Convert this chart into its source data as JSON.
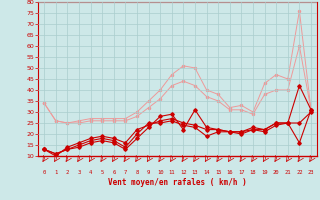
{
  "x": [
    0,
    1,
    2,
    3,
    4,
    5,
    6,
    7,
    8,
    9,
    10,
    11,
    12,
    13,
    14,
    15,
    16,
    17,
    18,
    19,
    20,
    21,
    22,
    23
  ],
  "line1": [
    13,
    11,
    13,
    14,
    16,
    17,
    16,
    13,
    18,
    23,
    28,
    29,
    22,
    31,
    23,
    22,
    21,
    21,
    22,
    22,
    25,
    25,
    42,
    31
  ],
  "line2": [
    13,
    11,
    13,
    15,
    17,
    18,
    17,
    14,
    20,
    25,
    25,
    26,
    24,
    23,
    19,
    21,
    21,
    20,
    22,
    21,
    24,
    25,
    16,
    31
  ],
  "line3": [
    13,
    10,
    14,
    16,
    18,
    19,
    18,
    16,
    22,
    24,
    26,
    27,
    25,
    24,
    22,
    22,
    21,
    21,
    23,
    22,
    25,
    25,
    25,
    30
  ],
  "line4": [
    34,
    26,
    25,
    26,
    27,
    27,
    27,
    27,
    30,
    35,
    40,
    47,
    51,
    50,
    40,
    38,
    32,
    33,
    30,
    43,
    47,
    45,
    76,
    31
  ],
  "line5": [
    34,
    26,
    25,
    25,
    26,
    26,
    26,
    26,
    28,
    32,
    36,
    42,
    44,
    42,
    37,
    35,
    31,
    31,
    29,
    38,
    40,
    40,
    60,
    31
  ],
  "ylim": [
    10,
    80
  ],
  "yticks": [
    10,
    15,
    20,
    25,
    30,
    35,
    40,
    45,
    50,
    55,
    60,
    65,
    70,
    75,
    80
  ],
  "xlabel": "Vent moyen/en rafales ( km/h )",
  "bg_color": "#cde8e8",
  "grid_color": "#aacece",
  "line_color_dark": "#cc0000",
  "line_color_light": "#ee9999"
}
